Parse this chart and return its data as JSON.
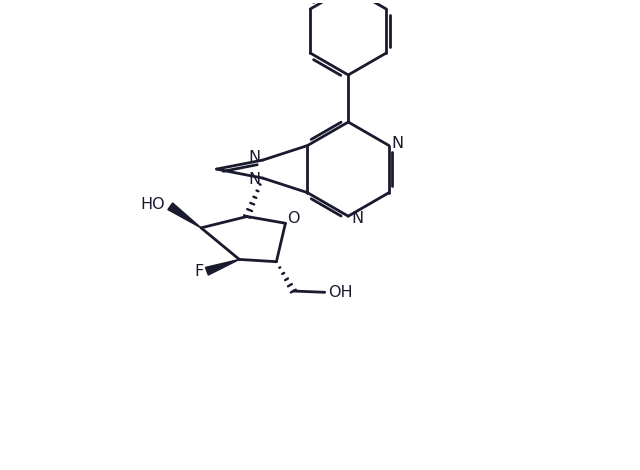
{
  "background_color": "#FFFFFF",
  "line_color": "#1a1a2e",
  "line_width": 2.0,
  "figsize": [
    6.4,
    4.7
  ],
  "dpi": 100,
  "xlim": [
    -2.8,
    3.2
  ],
  "ylim": [
    -3.2,
    4.2
  ]
}
